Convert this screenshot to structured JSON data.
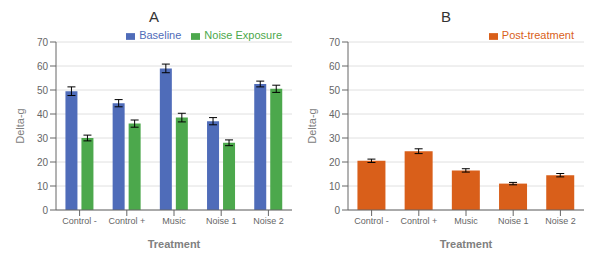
{
  "chart_data": [
    {
      "type": "bar",
      "title": "A",
      "xlabel": "Treatment",
      "ylabel": "Delta-g",
      "categories": [
        "Control -",
        "Control +",
        "Music",
        "Noise 1",
        "Noise 2"
      ],
      "series": [
        {
          "name": "Baseline",
          "color": "#4F6CB9",
          "values": [
            49.5,
            44.5,
            59.0,
            37.0,
            52.5
          ],
          "errors": [
            1.8,
            1.5,
            1.8,
            1.5,
            1.2
          ]
        },
        {
          "name": "Noise Exposure",
          "color": "#4CA84C",
          "values": [
            30.0,
            36.0,
            38.5,
            28.0,
            50.5
          ],
          "errors": [
            1.2,
            1.5,
            1.8,
            1.2,
            1.5
          ]
        }
      ],
      "ylim": [
        0,
        70
      ],
      "yticks": [
        0,
        10,
        20,
        30,
        40,
        50,
        60,
        70
      ],
      "grid": true,
      "legend": "upper right"
    },
    {
      "type": "bar",
      "title": "B",
      "xlabel": "Treatment",
      "ylabel": "Delta-g",
      "categories": [
        "Control -",
        "Control +",
        "Music",
        "Noise 1",
        "Noise 2"
      ],
      "series": [
        {
          "name": "Post-treatment",
          "color": "#D95F1A",
          "values": [
            20.5,
            24.5,
            16.5,
            11.0,
            14.5
          ],
          "errors": [
            0.7,
            1.0,
            0.7,
            0.5,
            0.7
          ]
        }
      ],
      "ylim": [
        0,
        70
      ],
      "yticks": [
        0,
        10,
        20,
        30,
        40,
        50,
        60,
        70
      ],
      "grid": true,
      "legend": "upper right"
    }
  ]
}
